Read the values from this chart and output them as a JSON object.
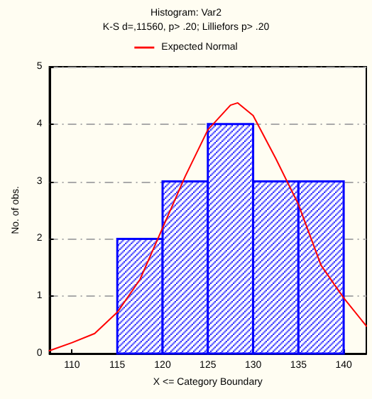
{
  "chart_data": {
    "type": "histogram",
    "title": "Histogram: Var2",
    "subtitle": "K-S d=,11560, p> .20; Lilliefors p> .20",
    "xlabel": "X <= Category Boundary",
    "ylabel": "No. of obs.",
    "bins": [
      115,
      120,
      125,
      130,
      135,
      140
    ],
    "values": [
      2,
      3,
      4,
      3,
      3
    ],
    "color": "#0000ff",
    "series": [
      {
        "type": "line",
        "name": "Expected Normal",
        "color": "#ff0000",
        "x": [
          107.5,
          110,
          112.5,
          115,
          117.5,
          120,
          122.5,
          125,
          127.5,
          128.3,
          130,
          132.5,
          135,
          137.5,
          140,
          142.5
        ],
        "values": [
          0.05,
          0.19,
          0.35,
          0.72,
          1.29,
          2.19,
          3.09,
          3.9,
          4.33,
          4.37,
          4.15,
          3.4,
          2.6,
          1.54,
          0.97,
          0.48
        ]
      }
    ],
    "xlim": [
      107.5,
      142.5
    ],
    "xticks": [
      110,
      115,
      120,
      125,
      130,
      135,
      140
    ],
    "ylim": [
      0,
      5
    ],
    "yticks": [
      0,
      1,
      2,
      3,
      4,
      5
    ],
    "grid": "y",
    "legend": "top",
    "marker": "none",
    "line_style": "solid"
  }
}
